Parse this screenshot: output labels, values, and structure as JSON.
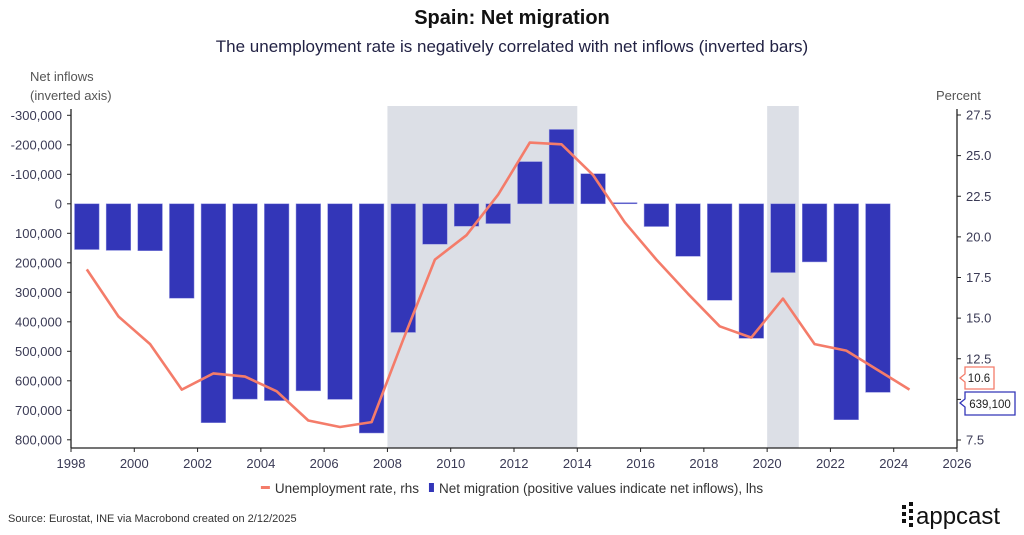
{
  "chart_data": {
    "type": "bar+line",
    "title": "Spain: Net migration",
    "subtitle": "The unemployment rate is negatively correlated with net inflows (inverted bars)",
    "left_axis": {
      "label_line1": "Net inflows",
      "label_line2": "(inverted axis)",
      "inverted": true,
      "range": [
        -330000,
        830000
      ],
      "ticks": [
        -300000,
        -200000,
        -100000,
        0,
        100000,
        200000,
        300000,
        400000,
        500000,
        600000,
        700000,
        800000
      ],
      "tick_labels": [
        "-300,000",
        "-200,000",
        "-100,000",
        "0",
        "100,000",
        "200,000",
        "300,000",
        "400,000",
        "500,000",
        "600,000",
        "700,000",
        "800,000"
      ]
    },
    "right_axis": {
      "label": "Percent",
      "range": [
        7,
        28
      ],
      "ticks": [
        7.5,
        10,
        12.5,
        15,
        17.5,
        20,
        22.5,
        25,
        27.5
      ],
      "tick_labels": [
        "7.5",
        "",
        "12.5",
        "15.0",
        "17.5",
        "20.0",
        "22.5",
        "25.0",
        "27.5"
      ]
    },
    "x_axis": {
      "range": [
        1998,
        2026
      ],
      "ticks": [
        1998,
        2000,
        2002,
        2004,
        2006,
        2008,
        2010,
        2012,
        2014,
        2016,
        2018,
        2020,
        2022,
        2024,
        2026
      ],
      "tick_labels": [
        "1998",
        "2000",
        "2002",
        "2004",
        "2006",
        "2008",
        "2010",
        "2012",
        "2014",
        "2016",
        "2018",
        "2020",
        "2022",
        "2024",
        "2026"
      ]
    },
    "shaded_periods": [
      [
        2008,
        2014
      ],
      [
        2020,
        2021
      ]
    ],
    "series": [
      {
        "name": "Net migration (positive values indicate net inflows), lhs",
        "type": "bar",
        "axis": "left",
        "color": "#3336B8",
        "x": [
          1998.5,
          1999.5,
          2000.5,
          2001.5,
          2002.5,
          2003.5,
          2004.5,
          2005.5,
          2006.5,
          2007.5,
          2008.5,
          2009.5,
          2010.5,
          2011.5,
          2012.5,
          2013.5,
          2014.5,
          2015.5,
          2016.5,
          2017.5,
          2018.5,
          2019.5,
          2020.5,
          2021.5,
          2022.5,
          2023.5
        ],
        "values": [
          155000,
          158000,
          159000,
          320000,
          742000,
          662000,
          667000,
          634000,
          663000,
          777000,
          436000,
          137000,
          76000,
          67000,
          -143000,
          -252000,
          -102000,
          -4000,
          77000,
          178000,
          327000,
          456000,
          233000,
          197000,
          732000,
          639100
        ]
      },
      {
        "name": "Unemployment rate, rhs",
        "type": "line",
        "axis": "right",
        "color": "#F47C6A",
        "x": [
          1998.5,
          1999.5,
          2000.5,
          2001.5,
          2002.5,
          2003.5,
          2004.5,
          2005.5,
          2006.5,
          2007.5,
          2008.5,
          2009.5,
          2010.5,
          2011.5,
          2012.5,
          2013.5,
          2014.5,
          2015.5,
          2016.5,
          2017.5,
          2018.5,
          2019.5,
          2020.5,
          2021.5,
          2022.5,
          2023.5,
          2024.5
        ],
        "values": [
          18.0,
          15.1,
          13.4,
          10.6,
          11.6,
          11.4,
          10.5,
          8.7,
          8.3,
          8.6,
          13.7,
          18.6,
          20.1,
          22.6,
          25.8,
          25.7,
          23.8,
          20.9,
          18.6,
          16.5,
          14.5,
          13.8,
          16.2,
          13.4,
          13.0,
          11.8,
          10.6
        ]
      }
    ],
    "annotations": {
      "line_last": "10.6",
      "bar_last": "639,100"
    },
    "legend": {
      "placement": "bottom",
      "line_label": "Unemployment rate, rhs",
      "bar_label": "Net migration (positive values indicate net inflows), lhs"
    }
  },
  "footer": {
    "source": "Source: Eurostat, INE via Macrobond created on 2/12/2025",
    "logo_text": "appcast"
  }
}
